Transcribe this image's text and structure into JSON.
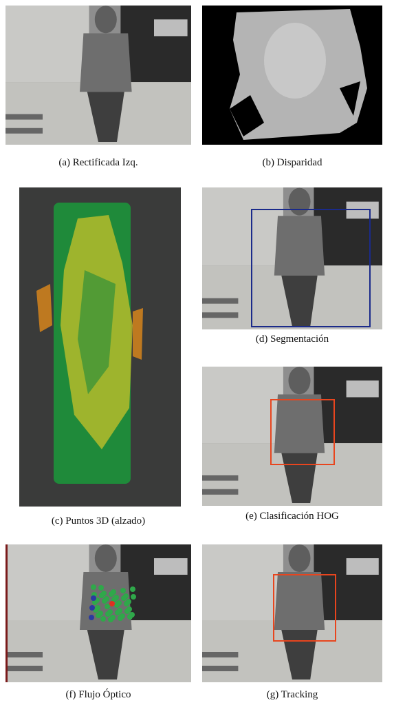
{
  "figure": {
    "subfigures": [
      {
        "caption": "(a)  Rectificada Izq."
      },
      {
        "caption": "(b)  Disparidad"
      },
      {
        "caption": "(c)  Puntos 3D (alzado)"
      },
      {
        "caption": "(d)  Segmentación"
      },
      {
        "caption": "(e)  Clasificación HOG"
      },
      {
        "caption": "(f)  Flujo Óptico"
      },
      {
        "caption": "(g)  Tracking"
      }
    ]
  }
}
